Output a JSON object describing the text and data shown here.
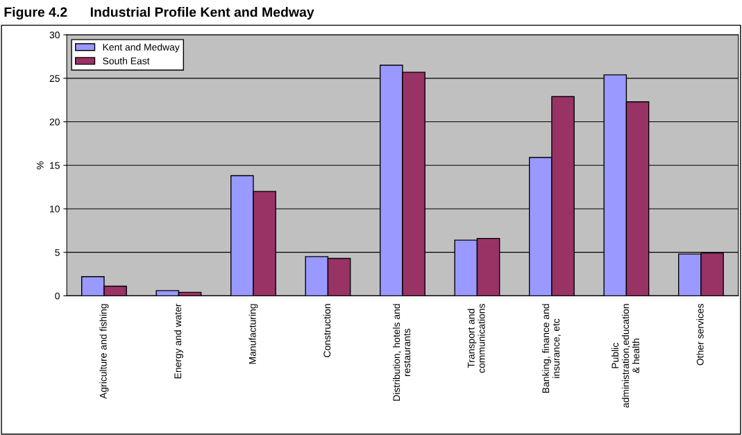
{
  "chart_data": {
    "type": "bar",
    "title": "Figure 4.2      Industrial Profile Kent and Medway",
    "ylabel": "%",
    "categories": [
      "Agriculture and fishing",
      "Energy and water",
      "Manufacturing",
      "Construction",
      "Distribution, hotels and\nrestaurants",
      "Transport and\ncommunications",
      "Banking, finance and\ninsurance, etc",
      "Public\nadministration,education\n& health",
      "Other services"
    ],
    "series": [
      {
        "name": "Kent and Medway",
        "color": "#9999ff",
        "values": [
          2.2,
          0.6,
          13.8,
          4.5,
          26.5,
          6.4,
          15.9,
          25.4,
          4.8
        ]
      },
      {
        "name": "South East",
        "color": "#993366",
        "values": [
          1.1,
          0.4,
          12.0,
          4.3,
          25.7,
          6.6,
          22.9,
          22.3,
          4.9
        ]
      }
    ],
    "ylim": [
      0,
      30
    ],
    "yticks": [
      0,
      5,
      10,
      15,
      20,
      25,
      30
    ],
    "grid": "y",
    "legend": "top left"
  }
}
